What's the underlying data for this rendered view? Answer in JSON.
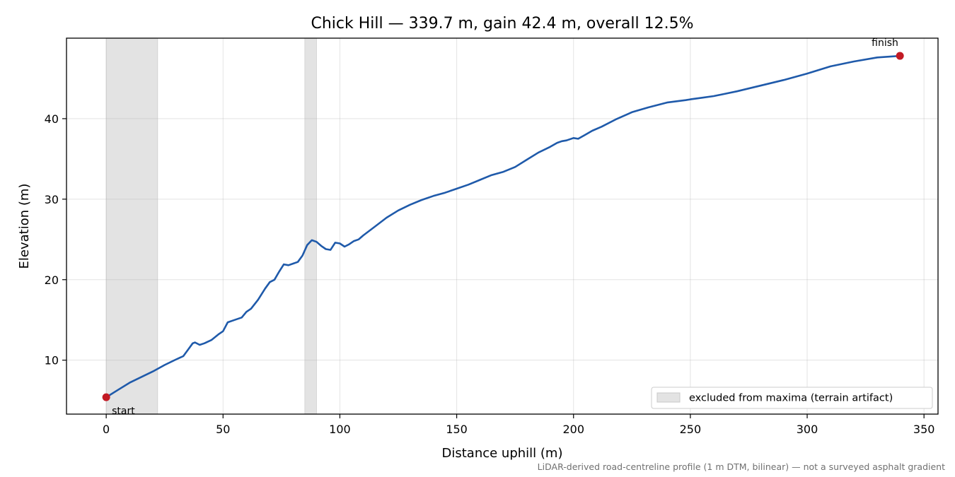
{
  "chart_data": {
    "type": "line",
    "title": "Chick Hill — 339.7 m, gain 42.4 m, overall 12.5%",
    "xlabel": "Distance uphill (m)",
    "ylabel": "Elevation (m)",
    "xlim": [
      -17,
      356
    ],
    "ylim": [
      3.3,
      50
    ],
    "xticks": [
      0,
      50,
      100,
      150,
      200,
      250,
      300,
      350
    ],
    "yticks": [
      10,
      20,
      30,
      40
    ],
    "grid": true,
    "legend_position": "lower-right",
    "colors": {
      "line": "#1f5aaa",
      "markers": "#c21a24",
      "shade": "#e3e3e3"
    },
    "series": [
      {
        "x": [
          0,
          5,
          10,
          15,
          20,
          25,
          30,
          33,
          35,
          37,
          38,
          40,
          42,
          45,
          48,
          50,
          52,
          55,
          58,
          60,
          62,
          65,
          68,
          70,
          72,
          74,
          76,
          78,
          80,
          82,
          84,
          86,
          88,
          90,
          92,
          94,
          96,
          98,
          100,
          102,
          104,
          106,
          108,
          110,
          115,
          120,
          125,
          130,
          135,
          140,
          145,
          150,
          155,
          160,
          165,
          170,
          175,
          180,
          185,
          190,
          193,
          195,
          197,
          200,
          202,
          205,
          208,
          212,
          218,
          225,
          232,
          240,
          248,
          250,
          255,
          260,
          265,
          270,
          280,
          290,
          300,
          310,
          320,
          330,
          339.7
        ],
        "y": [
          5.4,
          6.3,
          7.2,
          7.9,
          8.6,
          9.4,
          10.1,
          10.5,
          11.3,
          12.1,
          12.2,
          11.9,
          12.1,
          12.5,
          13.2,
          13.6,
          14.7,
          15.0,
          15.3,
          16.0,
          16.4,
          17.5,
          18.9,
          19.7,
          20.0,
          21.0,
          21.9,
          21.8,
          22.0,
          22.2,
          23.0,
          24.3,
          24.9,
          24.7,
          24.2,
          23.8,
          23.7,
          24.6,
          24.5,
          24.1,
          24.4,
          24.8,
          25.0,
          25.5,
          26.6,
          27.7,
          28.6,
          29.3,
          29.9,
          30.4,
          30.8,
          31.3,
          31.8,
          32.4,
          33.0,
          33.4,
          34.0,
          34.9,
          35.8,
          36.5,
          37.0,
          37.2,
          37.3,
          37.6,
          37.5,
          38.0,
          38.5,
          39.0,
          39.9,
          40.8,
          41.4,
          42.0,
          42.3,
          42.4,
          42.6,
          42.8,
          43.1,
          43.4,
          44.1,
          44.8,
          45.6,
          46.5,
          47.1,
          47.6,
          47.8
        ]
      }
    ],
    "points": [
      {
        "label": "start",
        "x": 0,
        "y": 5.4
      },
      {
        "label": "finish",
        "x": 339.7,
        "y": 47.8
      }
    ],
    "excluded_ranges": [
      [
        0,
        22
      ],
      [
        85,
        90
      ]
    ],
    "legend": {
      "entries": [
        "excluded from maxima (terrain artifact)"
      ]
    }
  },
  "footnote": "LiDAR-derived road-centreline profile (1 m DTM, bilinear) — not a surveyed asphalt gradient"
}
